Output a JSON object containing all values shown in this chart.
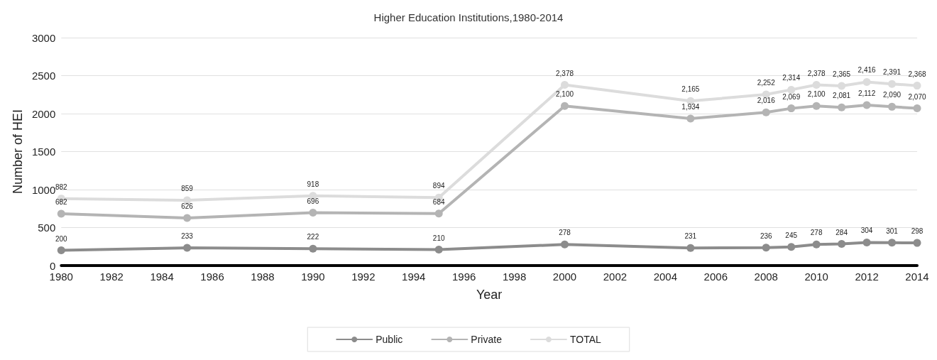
{
  "chart_data": {
    "type": "line",
    "title": "Higher Education Institutions,1980-2014",
    "xlabel": "Year",
    "ylabel": "Number of HEI",
    "x": [
      1980,
      1985,
      1990,
      1995,
      2000,
      2005,
      2008,
      2009,
      2010,
      2011,
      2012,
      2013,
      2014
    ],
    "series": [
      {
        "name": "Public",
        "color": "#8c8c8c",
        "values": [
          200,
          233,
          222,
          210,
          278,
          231,
          236,
          245,
          278,
          284,
          304,
          301,
          298
        ],
        "value_labels": [
          "200",
          "233",
          "222",
          "210",
          "278",
          "231",
          "236",
          "245",
          "278",
          "284",
          "304",
          "301",
          "298"
        ]
      },
      {
        "name": "Private",
        "color": "#b4b4b4",
        "values": [
          682,
          626,
          696,
          684,
          2100,
          1934,
          2016,
          2069,
          2100,
          2081,
          2112,
          2090,
          2070
        ],
        "value_labels": [
          "682",
          "626",
          "696",
          "684",
          "2,100",
          "1,934",
          "2,016",
          "2,069",
          "2,100",
          "2,081",
          "2,112",
          "2,090",
          "2,070"
        ]
      },
      {
        "name": "TOTAL",
        "color": "#dcdcdc",
        "values": [
          882,
          859,
          918,
          894,
          2378,
          2165,
          2252,
          2314,
          2378,
          2365,
          2416,
          2391,
          2368
        ],
        "value_labels": [
          "882",
          "859",
          "918",
          "894",
          "2,378",
          "2,165",
          "2,252",
          "2,314",
          "2,378",
          "2,365",
          "2,416",
          "2,391",
          "2,368"
        ]
      }
    ],
    "xlim": [
      1980,
      2014
    ],
    "xticks": [
      1980,
      1982,
      1984,
      1986,
      1988,
      1990,
      1992,
      1994,
      1996,
      1998,
      2000,
      2002,
      2004,
      2006,
      2008,
      2010,
      2012,
      2014
    ],
    "ylim": [
      0,
      3000
    ],
    "yticks": [
      0,
      500,
      1000,
      1500,
      2000,
      2500,
      3000
    ],
    "grid": "y",
    "legend": "bottom",
    "marker": "circle",
    "line_style": "solid"
  }
}
